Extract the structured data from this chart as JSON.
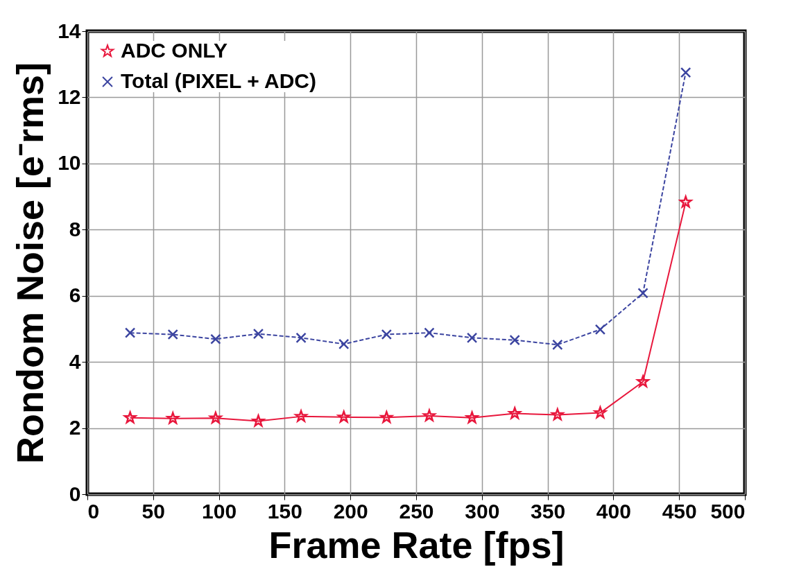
{
  "chart_data": {
    "type": "line",
    "xlabel": "Frame Rate [fps]",
    "ylabel": "Rondom Noise [e⁻rms]",
    "xlim": [
      0,
      500
    ],
    "xticks": [
      0,
      50,
      100,
      150,
      200,
      250,
      300,
      350,
      400,
      450,
      500
    ],
    "ylim": [
      0,
      14
    ],
    "yticks": [
      0,
      2,
      4,
      6,
      8,
      10,
      12,
      14
    ],
    "grid": true,
    "legend": "top left",
    "x": [
      32.5,
      65,
      97.5,
      130,
      162.5,
      195,
      227.5,
      260,
      292.5,
      325,
      357.5,
      390,
      422.5,
      455
    ],
    "series": [
      {
        "name": "ADC ONLY",
        "color": "#e8173c",
        "line_style": "solid",
        "marker": "star",
        "values": [
          2.31,
          2.29,
          2.3,
          2.21,
          2.35,
          2.33,
          2.32,
          2.37,
          2.31,
          2.44,
          2.4,
          2.46,
          3.4,
          8.83
        ]
      },
      {
        "name": "Total (PIXEL + ADC)",
        "color": "#3b44a0",
        "line_style": "dashed",
        "marker": "cross",
        "values": [
          4.88,
          4.83,
          4.69,
          4.85,
          4.73,
          4.54,
          4.83,
          4.88,
          4.73,
          4.66,
          4.52,
          4.98,
          6.08,
          12.75
        ]
      }
    ]
  }
}
